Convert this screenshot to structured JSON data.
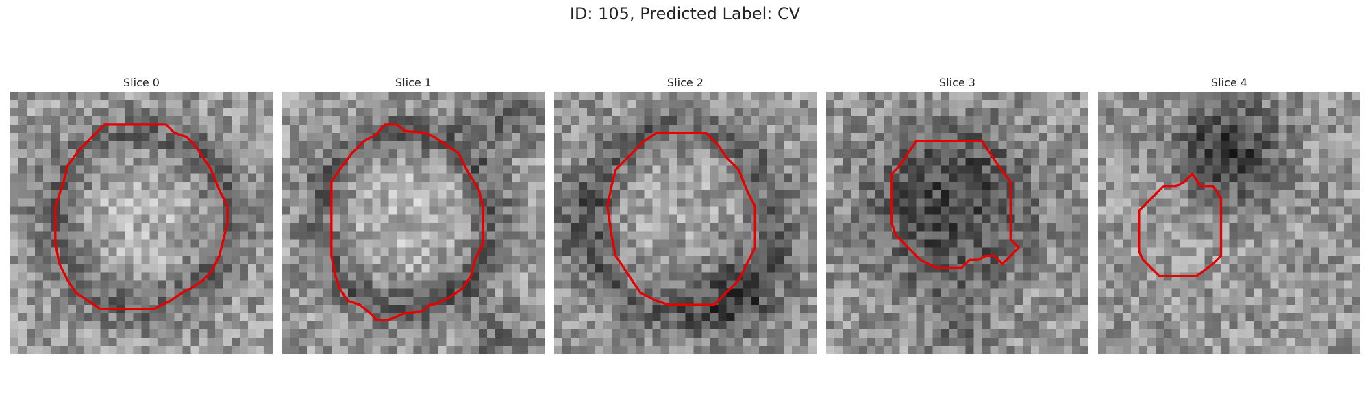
{
  "figure": {
    "title": "ID: 105, Predicted Label: CV"
  },
  "panels": [
    {
      "title": "Slice 0"
    },
    {
      "title": "Slice 1"
    },
    {
      "title": "Slice 2"
    },
    {
      "title": "Slice 3"
    },
    {
      "title": "Slice 4"
    }
  ],
  "colors": {
    "contour": "#e60000"
  },
  "image_grid": 32
}
